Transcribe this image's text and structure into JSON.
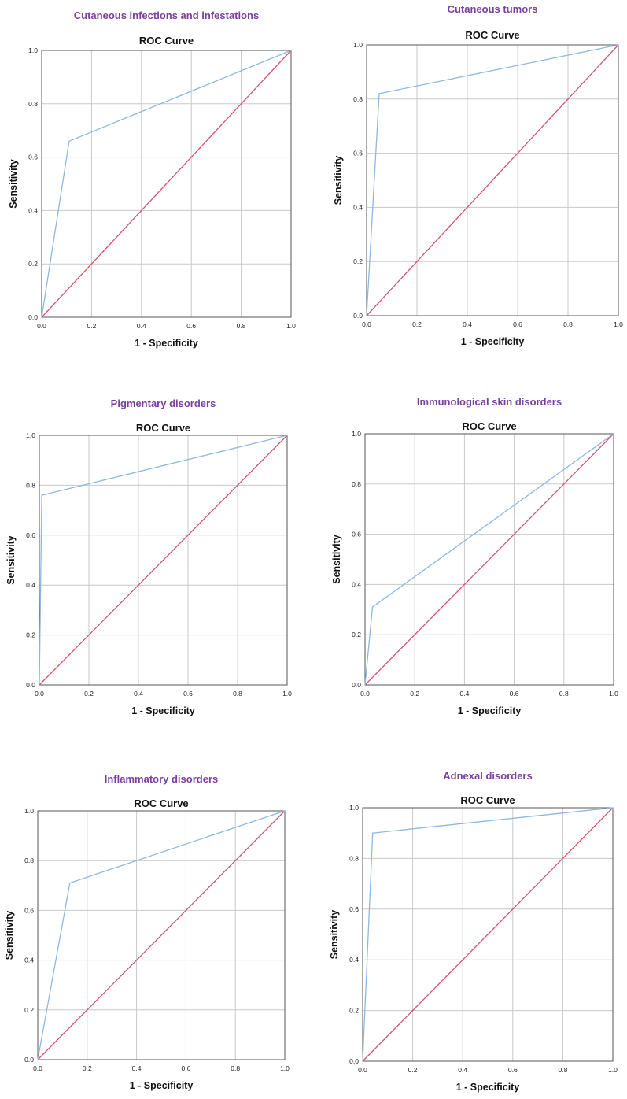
{
  "colors": {
    "panel_title": "#7b3fa0",
    "roc_curve": "#8db8e0",
    "reference_line": "#d9506f"
  },
  "chart_data": [
    {
      "type": "line",
      "panel_title": "Cutaneous infections and infestations",
      "title": "ROC Curve",
      "xlabel": "1 - Specificity",
      "ylabel": "Sensitivity",
      "xlim": [
        0,
        1
      ],
      "ylim": [
        0,
        1
      ],
      "xticks": [
        "0.0",
        "0.2",
        "0.4",
        "0.6",
        "0.8",
        "1.0"
      ],
      "yticks": [
        "0.0",
        "0.2",
        "0.4",
        "0.6",
        "0.8",
        "1.0"
      ],
      "grid": true,
      "series": [
        {
          "role": "roc",
          "x": [
            0,
            0.11,
            1
          ],
          "y": [
            0,
            0.66,
            1
          ]
        },
        {
          "role": "reference",
          "x": [
            0,
            1
          ],
          "y": [
            0,
            1
          ]
        }
      ]
    },
    {
      "type": "line",
      "panel_title": "Cutaneous tumors",
      "title": "ROC Curve",
      "xlabel": "1 - Specificity",
      "ylabel": "Sensitivity",
      "xlim": [
        0,
        1
      ],
      "ylim": [
        0,
        1
      ],
      "xticks": [
        "0.0",
        "0.2",
        "0.4",
        "0.6",
        "0.8",
        "1.0"
      ],
      "yticks": [
        "0.0",
        "0.2",
        "0.4",
        "0.6",
        "0.8",
        "1.0"
      ],
      "grid": true,
      "series": [
        {
          "role": "roc",
          "x": [
            0,
            0.05,
            1
          ],
          "y": [
            0,
            0.82,
            1
          ]
        },
        {
          "role": "reference",
          "x": [
            0,
            1
          ],
          "y": [
            0,
            1
          ]
        }
      ]
    },
    {
      "type": "line",
      "panel_title": "Pigmentary disorders",
      "title": "ROC Curve",
      "xlabel": "1 - Specificity",
      "ylabel": "Sensitivity",
      "xlim": [
        0,
        1
      ],
      "ylim": [
        0,
        1
      ],
      "xticks": [
        "0.0",
        "0.2",
        "0.4",
        "0.6",
        "0.8",
        "1.0"
      ],
      "yticks": [
        "0.0",
        "0.2",
        "0.4",
        "0.6",
        "0.8",
        "1.0"
      ],
      "grid": true,
      "series": [
        {
          "role": "roc",
          "x": [
            0,
            0.01,
            1
          ],
          "y": [
            0,
            0.76,
            1
          ]
        },
        {
          "role": "reference",
          "x": [
            0,
            1
          ],
          "y": [
            0,
            1
          ]
        }
      ]
    },
    {
      "type": "line",
      "panel_title": "Immunological skin disorders",
      "title": "ROC Curve",
      "xlabel": "1 - Specificity",
      "ylabel": "Sensitivity",
      "xlim": [
        0,
        1
      ],
      "ylim": [
        0,
        1
      ],
      "xticks": [
        "0.0",
        "0.2",
        "0.4",
        "0.6",
        "0.8",
        "1.0"
      ],
      "yticks": [
        "0.0",
        "0.2",
        "0.4",
        "0.6",
        "0.8",
        "1.0"
      ],
      "grid": true,
      "series": [
        {
          "role": "roc",
          "x": [
            0,
            0.03,
            1
          ],
          "y": [
            0,
            0.31,
            1
          ]
        },
        {
          "role": "reference",
          "x": [
            0,
            1
          ],
          "y": [
            0,
            1
          ]
        }
      ]
    },
    {
      "type": "line",
      "panel_title": "Inflammatory disorders",
      "title": "ROC Curve",
      "xlabel": "1 - Specificity",
      "ylabel": "Sensitivity",
      "xlim": [
        0,
        1
      ],
      "ylim": [
        0,
        1
      ],
      "xticks": [
        "0.0",
        "0.2",
        "0.4",
        "0.6",
        "0.8",
        "1.0"
      ],
      "yticks": [
        "0.0",
        "0.2",
        "0.4",
        "0.6",
        "0.8",
        "1.0"
      ],
      "grid": true,
      "series": [
        {
          "role": "roc",
          "x": [
            0,
            0.13,
            1
          ],
          "y": [
            0,
            0.71,
            1
          ]
        },
        {
          "role": "reference",
          "x": [
            0,
            1
          ],
          "y": [
            0,
            1
          ]
        }
      ]
    },
    {
      "type": "line",
      "panel_title": "Adnexal disorders",
      "title": "ROC Curve",
      "xlabel": "1 - Specificity",
      "ylabel": "Sensitivity",
      "xlim": [
        0,
        1
      ],
      "ylim": [
        0,
        1
      ],
      "xticks": [
        "0.0",
        "0.2",
        "0.4",
        "0.6",
        "0.8",
        "1.0"
      ],
      "yticks": [
        "0.0",
        "0.2",
        "0.4",
        "0.6",
        "0.8",
        "1.0"
      ],
      "grid": true,
      "series": [
        {
          "role": "roc",
          "x": [
            0,
            0.04,
            1
          ],
          "y": [
            0,
            0.9,
            1
          ]
        },
        {
          "role": "reference",
          "x": [
            0,
            1
          ],
          "y": [
            0,
            1
          ]
        }
      ]
    }
  ]
}
